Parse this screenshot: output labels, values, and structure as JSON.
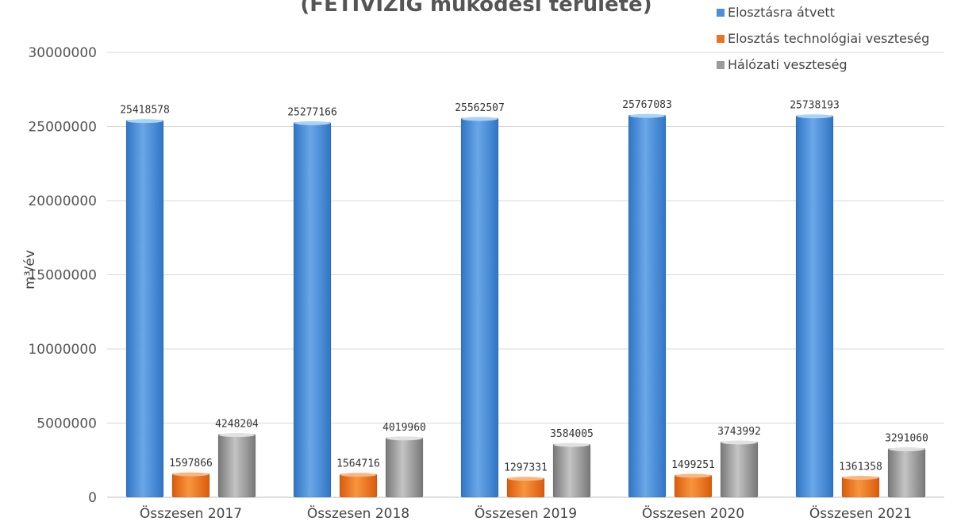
{
  "chart_data": {
    "type": "bar",
    "title": "(FETIVIZIG működési területe)",
    "ylabel": "m³/év",
    "xlabel": "",
    "ylim": [
      0,
      30000000
    ],
    "yticks": [
      "0",
      "5000000",
      "10000000",
      "15000000",
      "20000000",
      "25000000",
      "30000000"
    ],
    "categories": [
      "Összesen 2017",
      "Összesen 2018",
      "Összesen 2019",
      "Összesen 2020",
      "Összesen 2021"
    ],
    "grid": true,
    "legend_position": "top-right",
    "series": [
      {
        "name": "Elosztásra átvett",
        "color": "#4a8fd8",
        "values": [
          25418578,
          25277166,
          25562507,
          25767083,
          25738193
        ],
        "labels": [
          "25418578",
          "25277166",
          "25562507",
          "25767083",
          "25738193"
        ]
      },
      {
        "name": "Elosztás technológiai veszteség",
        "color": "#ec7122",
        "values": [
          1597866,
          1564716,
          1297331,
          1499251,
          1361358
        ],
        "labels": [
          "1597866",
          "1564716",
          "1297331",
          "1499251",
          "1361358"
        ]
      },
      {
        "name": "Hálózati veszteség",
        "color": "#9b9b9b",
        "values": [
          4248204,
          4019960,
          3584005,
          3743992,
          3291060
        ],
        "labels": [
          "4248204",
          "4019960",
          "3584005",
          "3743992",
          "3291060"
        ]
      }
    ]
  }
}
